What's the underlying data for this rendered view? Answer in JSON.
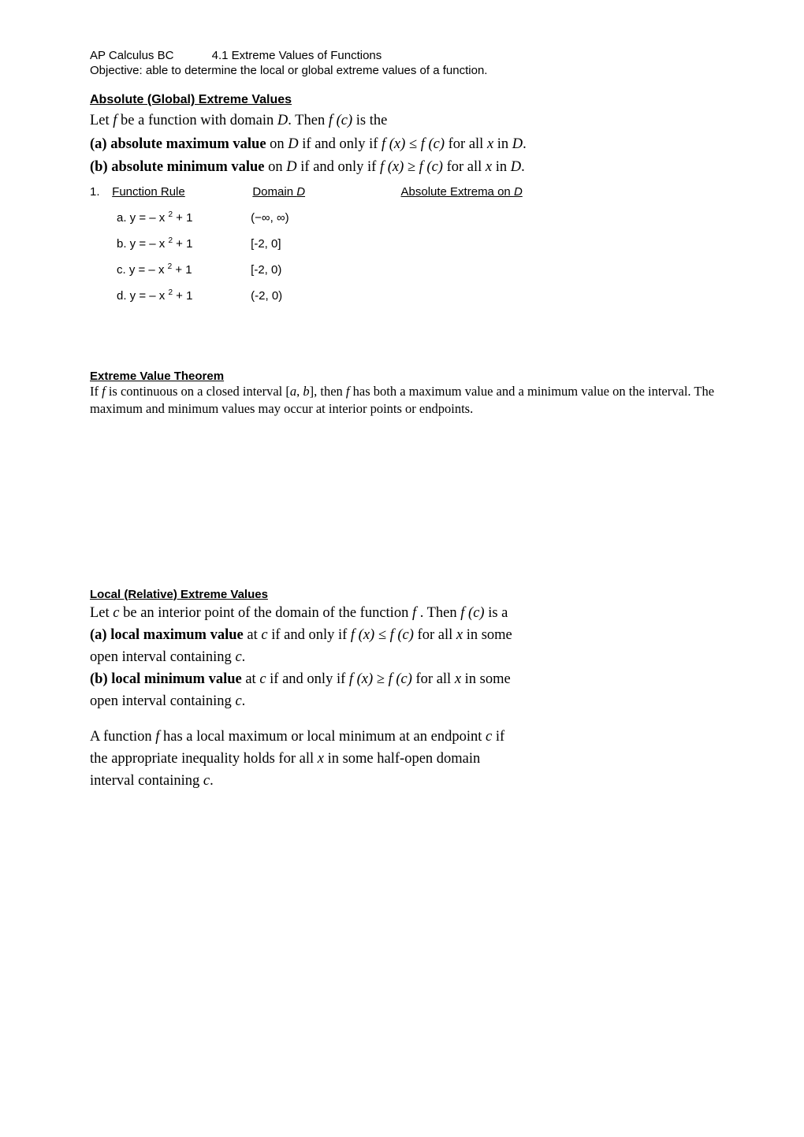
{
  "header": {
    "course": "AP Calculus BC",
    "section_title": "4.1 Extreme Values of Functions",
    "objective": "Objective: able to determine the local or global extreme values of a function."
  },
  "abs_extreme": {
    "heading": "Absolute (Global) Extreme Values",
    "line1_pre": "Let ",
    "line1_f": "f ",
    "line1_mid": " be a function with domain ",
    "line1_D": "D",
    "line1_mid2": ".  Then ",
    "line1_fc": "f (c)",
    "line1_end": " is the",
    "line_a_label": "(a) absolute maximum value",
    "line_a_on": " on ",
    "line_a_D": "D",
    "line_a_iff": " if and only if ",
    "line_a_ineq": "f (x) ≤ f (c)",
    "line_a_for": " for all ",
    "line_a_x": "x",
    "line_a_in": " in ",
    "line_a_D2": "D",
    "line_a_period": ".",
    "line_b_label": "(b) absolute minimum value",
    "line_b_on": " on ",
    "line_b_D": "D",
    "line_b_iff": " if and only if ",
    "line_b_ineq": "f (x) ≥ f (c)",
    "line_b_for": " for all ",
    "line_b_x": "x",
    "line_b_in": " in ",
    "line_b_D2": "D",
    "line_b_period": "."
  },
  "table": {
    "number": "1.",
    "col1": "Function Rule",
    "col2_pre": "Domain ",
    "col2_D": "D",
    "col3_pre": "Absolute Extrema on ",
    "col3_D": "D",
    "rows": [
      {
        "label": "a. y = – x ",
        "exp": "2",
        "tail": " + 1",
        "domain": "(−∞, ∞)"
      },
      {
        "label": "b. y = – x ",
        "exp": "2",
        "tail": " + 1",
        "domain": "[-2, 0]"
      },
      {
        "label": "c. y = – x ",
        "exp": "2",
        "tail": " + 1",
        "domain": "[-2, 0)"
      },
      {
        "label": "d. y = – x ",
        "exp": "2",
        "tail": " + 1",
        "domain": "(-2, 0)"
      }
    ]
  },
  "evt": {
    "heading": "Extreme Value Theorem",
    "text_pre": "If ",
    "text_f": "f",
    "text_mid1": " is continuous on a closed interval [",
    "text_a": "a",
    "text_comma": ", ",
    "text_b": "b",
    "text_mid2": "], then ",
    "text_f2": "f",
    "text_end": " has both a maximum value and a minimum value on the interval.  The maximum and minimum values may occur at interior points or endpoints."
  },
  "local": {
    "heading": "Local (Relative) Extreme Values",
    "l1_pre": "Let ",
    "l1_c": "c",
    "l1_mid": " be an interior point of the domain of the function ",
    "l1_f": " f ",
    "l1_mid2": ".  Then ",
    "l1_fc": "f (c)",
    "l1_end": " is a",
    "la_label": "(a) local maximum value",
    "la_at": " at ",
    "la_c": "c",
    "la_iff": " if and only if ",
    "la_ineq": "f (x) ≤ f (c)",
    "la_for": " for all ",
    "la_x": "x",
    "la_in": " in some",
    "la_tail_pre": "open interval containing ",
    "la_tail_c": "c",
    "la_tail_period": ".",
    "lb_label": "(b) local minimum value",
    "lb_at": " at ",
    "lb_c": "c",
    "lb_iff": " if and only if ",
    "lb_ineq": "f (x) ≥ f (c)",
    "lb_for": " for all ",
    "lb_x": "x",
    "lb_in": " in some",
    "lb_tail_pre": "open interval containing ",
    "lb_tail_c": "c",
    "lb_tail_period": ".",
    "p2_l1_pre": "A function ",
    "p2_l1_f": "f ",
    "p2_l1_mid": " has a local maximum or local minimum at an endpoint ",
    "p2_l1_c": "c",
    "p2_l1_if": " if",
    "p2_l2_pre": "the appropriate inequality holds for all ",
    "p2_l2_x": "x",
    "p2_l2_end": " in some half-open domain",
    "p2_l3_pre": "interval containing ",
    "p2_l3_c": "c",
    "p2_l3_period": "."
  }
}
